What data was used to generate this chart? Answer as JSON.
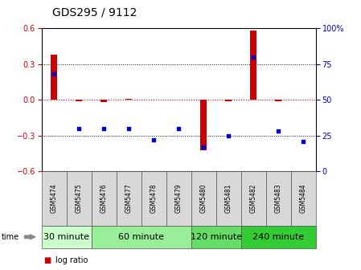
{
  "title": "GDS295 / 9112",
  "samples": [
    "GSM5474",
    "GSM5475",
    "GSM5476",
    "GSM5477",
    "GSM5478",
    "GSM5479",
    "GSM5480",
    "GSM5481",
    "GSM5482",
    "GSM5483",
    "GSM5484"
  ],
  "log_ratio": [
    0.38,
    -0.01,
    -0.02,
    0.01,
    0.0,
    0.0,
    -0.42,
    -0.01,
    0.58,
    -0.01,
    0.0
  ],
  "percentile": [
    68,
    30,
    30,
    30,
    22,
    30,
    17,
    25,
    80,
    28,
    21
  ],
  "ylim_left": [
    -0.6,
    0.6
  ],
  "ylim_right": [
    0,
    100
  ],
  "yticks_left": [
    -0.6,
    -0.3,
    0.0,
    0.3,
    0.6
  ],
  "yticks_right": [
    0,
    25,
    50,
    75,
    100
  ],
  "ytick_labels_right": [
    "0",
    "25",
    "50",
    "75",
    "100%"
  ],
  "groups": [
    {
      "label": "30 minute",
      "start": 0,
      "end": 2,
      "color": "#ccffcc"
    },
    {
      "label": "60 minute",
      "start": 2,
      "end": 6,
      "color": "#99ee99"
    },
    {
      "label": "120 minute",
      "start": 6,
      "end": 8,
      "color": "#66dd66"
    },
    {
      "label": "240 minute",
      "start": 8,
      "end": 11,
      "color": "#33cc33"
    }
  ],
  "bar_color": "#cc0000",
  "dot_color": "#0000cc",
  "zero_line_color": "#cc0000",
  "hline_color": "#111111",
  "bg_color": "#ffffff",
  "title_fontsize": 10,
  "tick_fontsize": 7,
  "group_fontsize": 8,
  "legend_fontsize": 7,
  "sample_fontsize": 5.5
}
